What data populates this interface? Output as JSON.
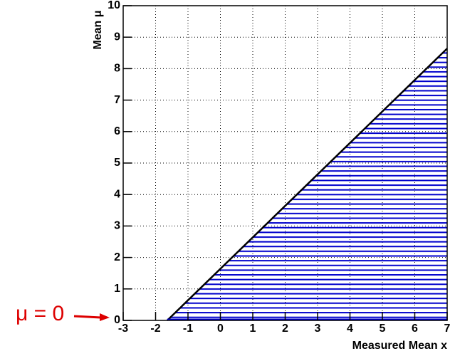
{
  "chart_data": {
    "type": "area",
    "x": [
      -1.64,
      7
    ],
    "values": [
      0,
      8.64
    ],
    "color": "#0000cc",
    "xlabel": "Measured Mean x",
    "ylabel": "Mean μ",
    "xlim": [
      -3,
      7
    ],
    "xticks": [
      -3,
      -2,
      -1,
      0,
      1,
      2,
      3,
      4,
      5,
      6,
      7
    ],
    "ylim": [
      0,
      10
    ],
    "yticks": [
      0,
      1,
      2,
      3,
      4,
      5,
      6,
      7,
      8,
      9,
      10
    ],
    "grid": true,
    "annotation": {
      "text": "μ = 0",
      "color": "#dd0000",
      "y": 0
    }
  }
}
